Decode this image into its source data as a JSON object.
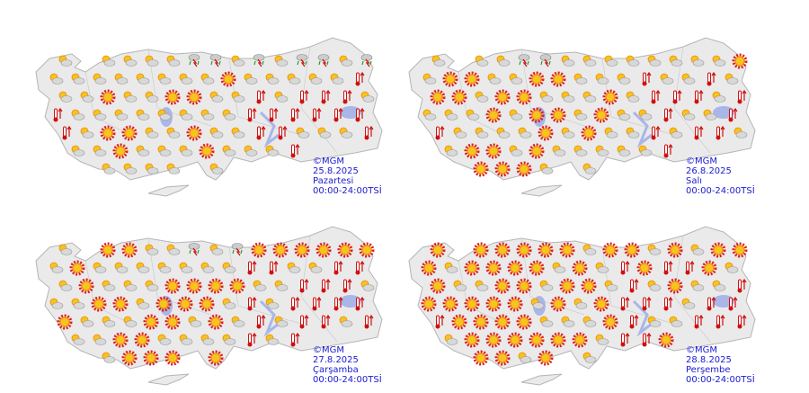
{
  "panels": [
    {
      "credit": "©MGM",
      "date": "25.8.2025",
      "day": "Pazartesi",
      "period": "00:00-24:00TSİ"
    },
    {
      "credit": "©MGM",
      "date": "26.8.2025",
      "day": "Salı",
      "period": "00:00-24:00TSİ"
    },
    {
      "credit": "©MGM",
      "date": "27.8.2025",
      "day": "Çarşamba",
      "period": "00:00-24:00TSİ"
    },
    {
      "credit": "©MGM",
      "date": "28.8.2025",
      "day": "Perşembe",
      "period": "00:00-24:00TSİ"
    }
  ]
}
